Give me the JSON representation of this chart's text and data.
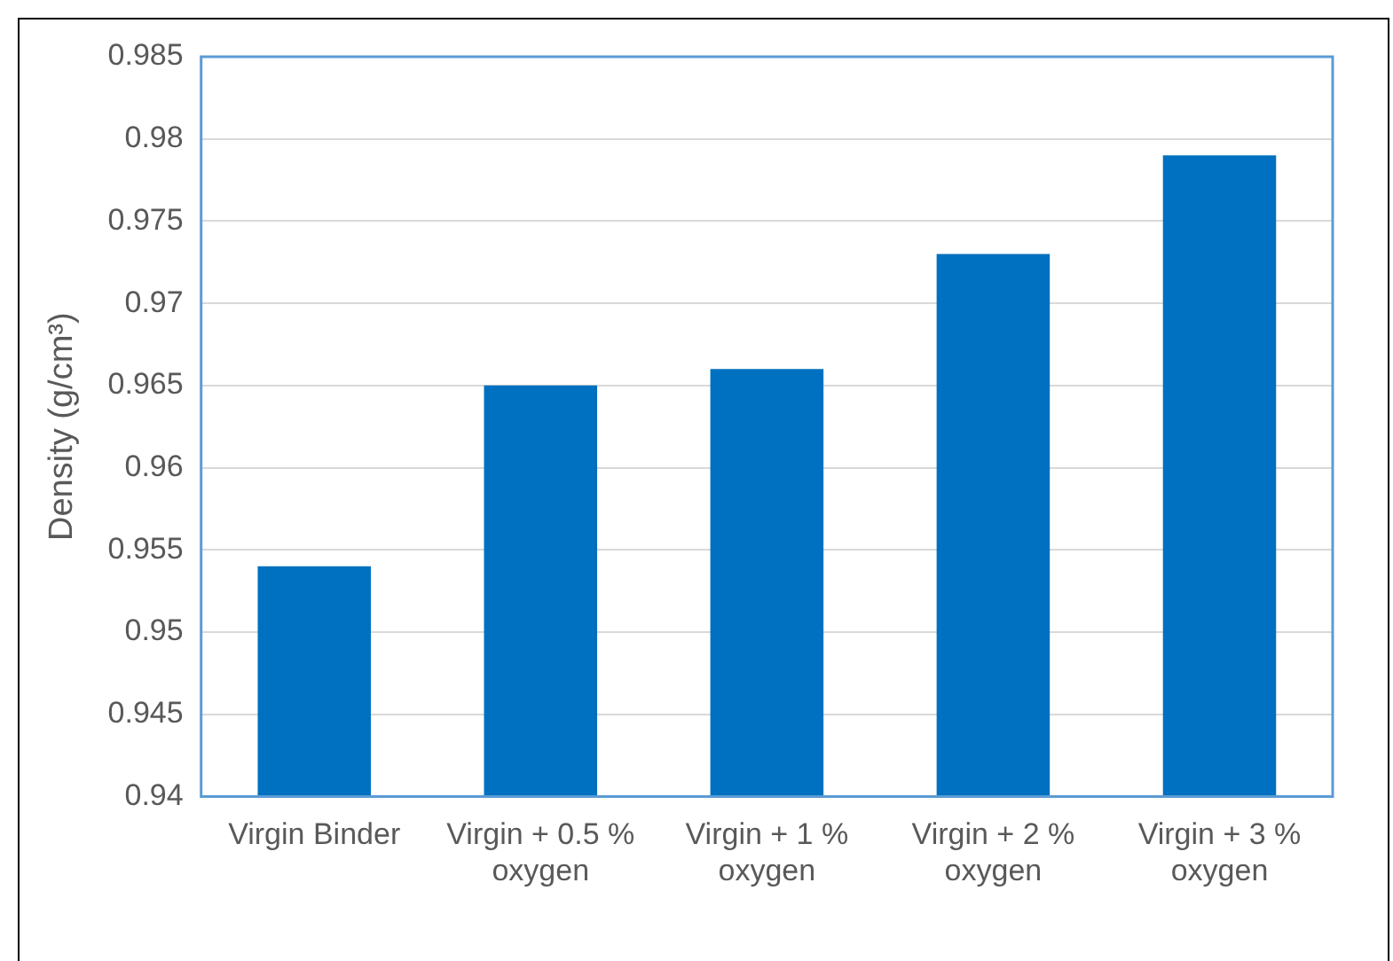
{
  "chart_data": {
    "type": "bar",
    "ylabel": "Density (g/cm³)",
    "categories": [
      "Virgin Binder",
      "Virgin + 0.5 % oxygen",
      "Virgin + 1 % oxygen",
      "Virgin + 2 % oxygen",
      "Virgin + 3 % oxygen"
    ],
    "values": [
      0.954,
      0.965,
      0.966,
      0.973,
      0.979
    ],
    "color": "#0070c0",
    "ylim": [
      0.94,
      0.985
    ],
    "yticks": [
      0.94,
      0.945,
      0.95,
      0.955,
      0.96,
      0.965,
      0.97,
      0.975,
      0.98,
      0.985
    ],
    "grid": "y",
    "legend": false
  }
}
